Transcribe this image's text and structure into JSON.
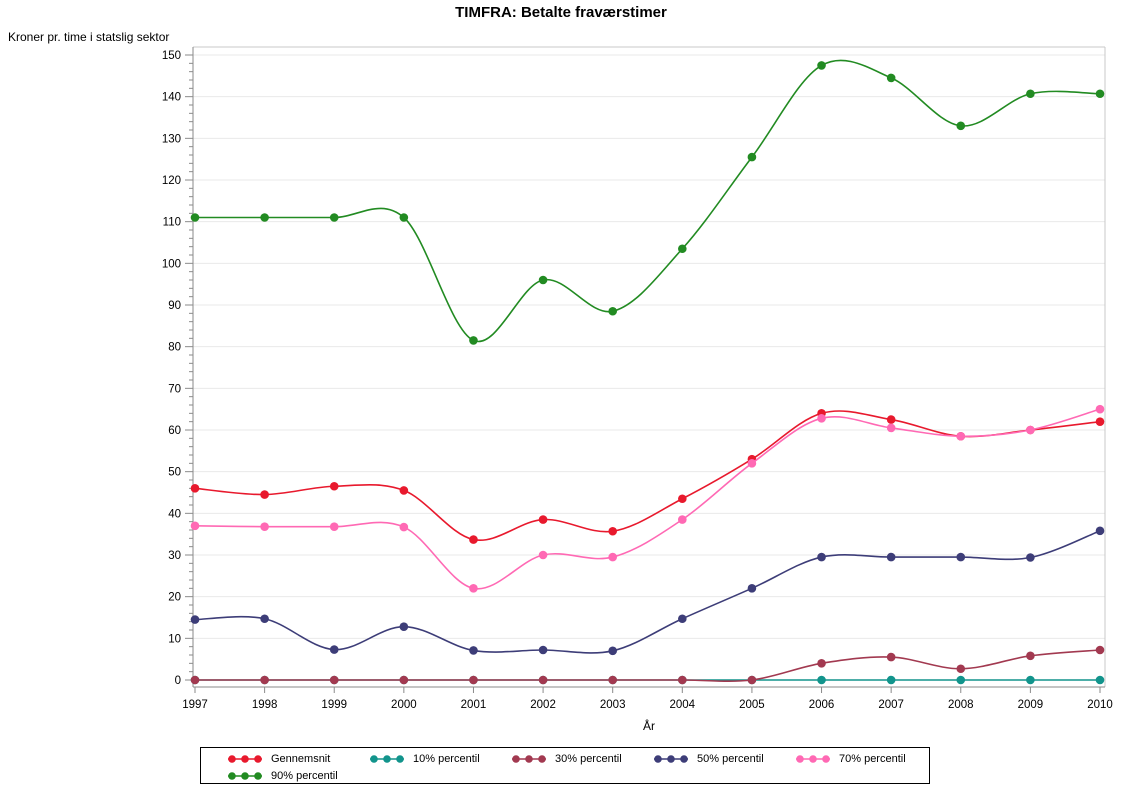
{
  "title": "TIMFRA: Betalte fraværstimer",
  "y_axis_unit": "Kroner pr. time i statslig sektor",
  "x_axis_label": "År",
  "chart_data": {
    "type": "line",
    "title": "TIMFRA: Betalte fraværstimer",
    "xlabel": "År",
    "ylabel": "Kroner pr. time i statslig sektor",
    "x": [
      1997,
      1998,
      1999,
      2000,
      2001,
      2002,
      2003,
      2004,
      2005,
      2006,
      2007,
      2008,
      2009,
      2010
    ],
    "ylim": [
      0,
      150
    ],
    "y_ticks": [
      0,
      10,
      20,
      30,
      40,
      50,
      60,
      70,
      80,
      90,
      100,
      110,
      120,
      130,
      140,
      150
    ],
    "y_minor_tick_step": 2,
    "grid": true,
    "smooth": true,
    "marker": "filled-circle",
    "legend_position": "bottom",
    "series": [
      {
        "name": "Gennemsnit",
        "color": "#e8192d",
        "values": [
          46,
          44.5,
          46.5,
          45.5,
          33.7,
          38.5,
          35.7,
          43.5,
          53,
          64,
          62.5,
          58.5,
          60,
          62
        ]
      },
      {
        "name": "10% percentil",
        "color": "#12948c",
        "values": [
          0,
          0,
          0,
          0,
          0,
          0,
          0,
          0,
          0,
          0,
          0,
          0,
          0,
          0
        ]
      },
      {
        "name": "30% percentil",
        "color": "#a23950",
        "values": [
          0,
          0,
          0,
          0,
          0,
          0,
          0,
          0,
          0,
          4,
          5.5,
          2.7,
          5.8,
          7.2
        ]
      },
      {
        "name": "50% percentil",
        "color": "#3d3d78",
        "values": [
          14.5,
          14.7,
          7.3,
          12.8,
          7.1,
          7.2,
          7,
          14.7,
          22,
          29.5,
          29.5,
          29.5,
          29.4,
          35.8
        ]
      },
      {
        "name": "70% percentil",
        "color": "#ff69b4",
        "values": [
          37,
          36.8,
          36.8,
          36.7,
          22,
          30,
          29.5,
          38.5,
          52,
          62.8,
          60.5,
          58.5,
          60,
          65
        ]
      },
      {
        "name": "90% percentil",
        "color": "#228b22",
        "values": [
          111,
          111,
          111,
          111,
          81.5,
          96,
          88.5,
          103.5,
          125.5,
          147.5,
          144.5,
          133,
          140.7,
          140.7
        ]
      }
    ]
  },
  "style_colors": {
    "gridline": "#e9e9e9",
    "frame": "#c8c8c8",
    "axis": "#8a8a8a",
    "tick_text": "#000000",
    "legend_border": "#000000"
  }
}
